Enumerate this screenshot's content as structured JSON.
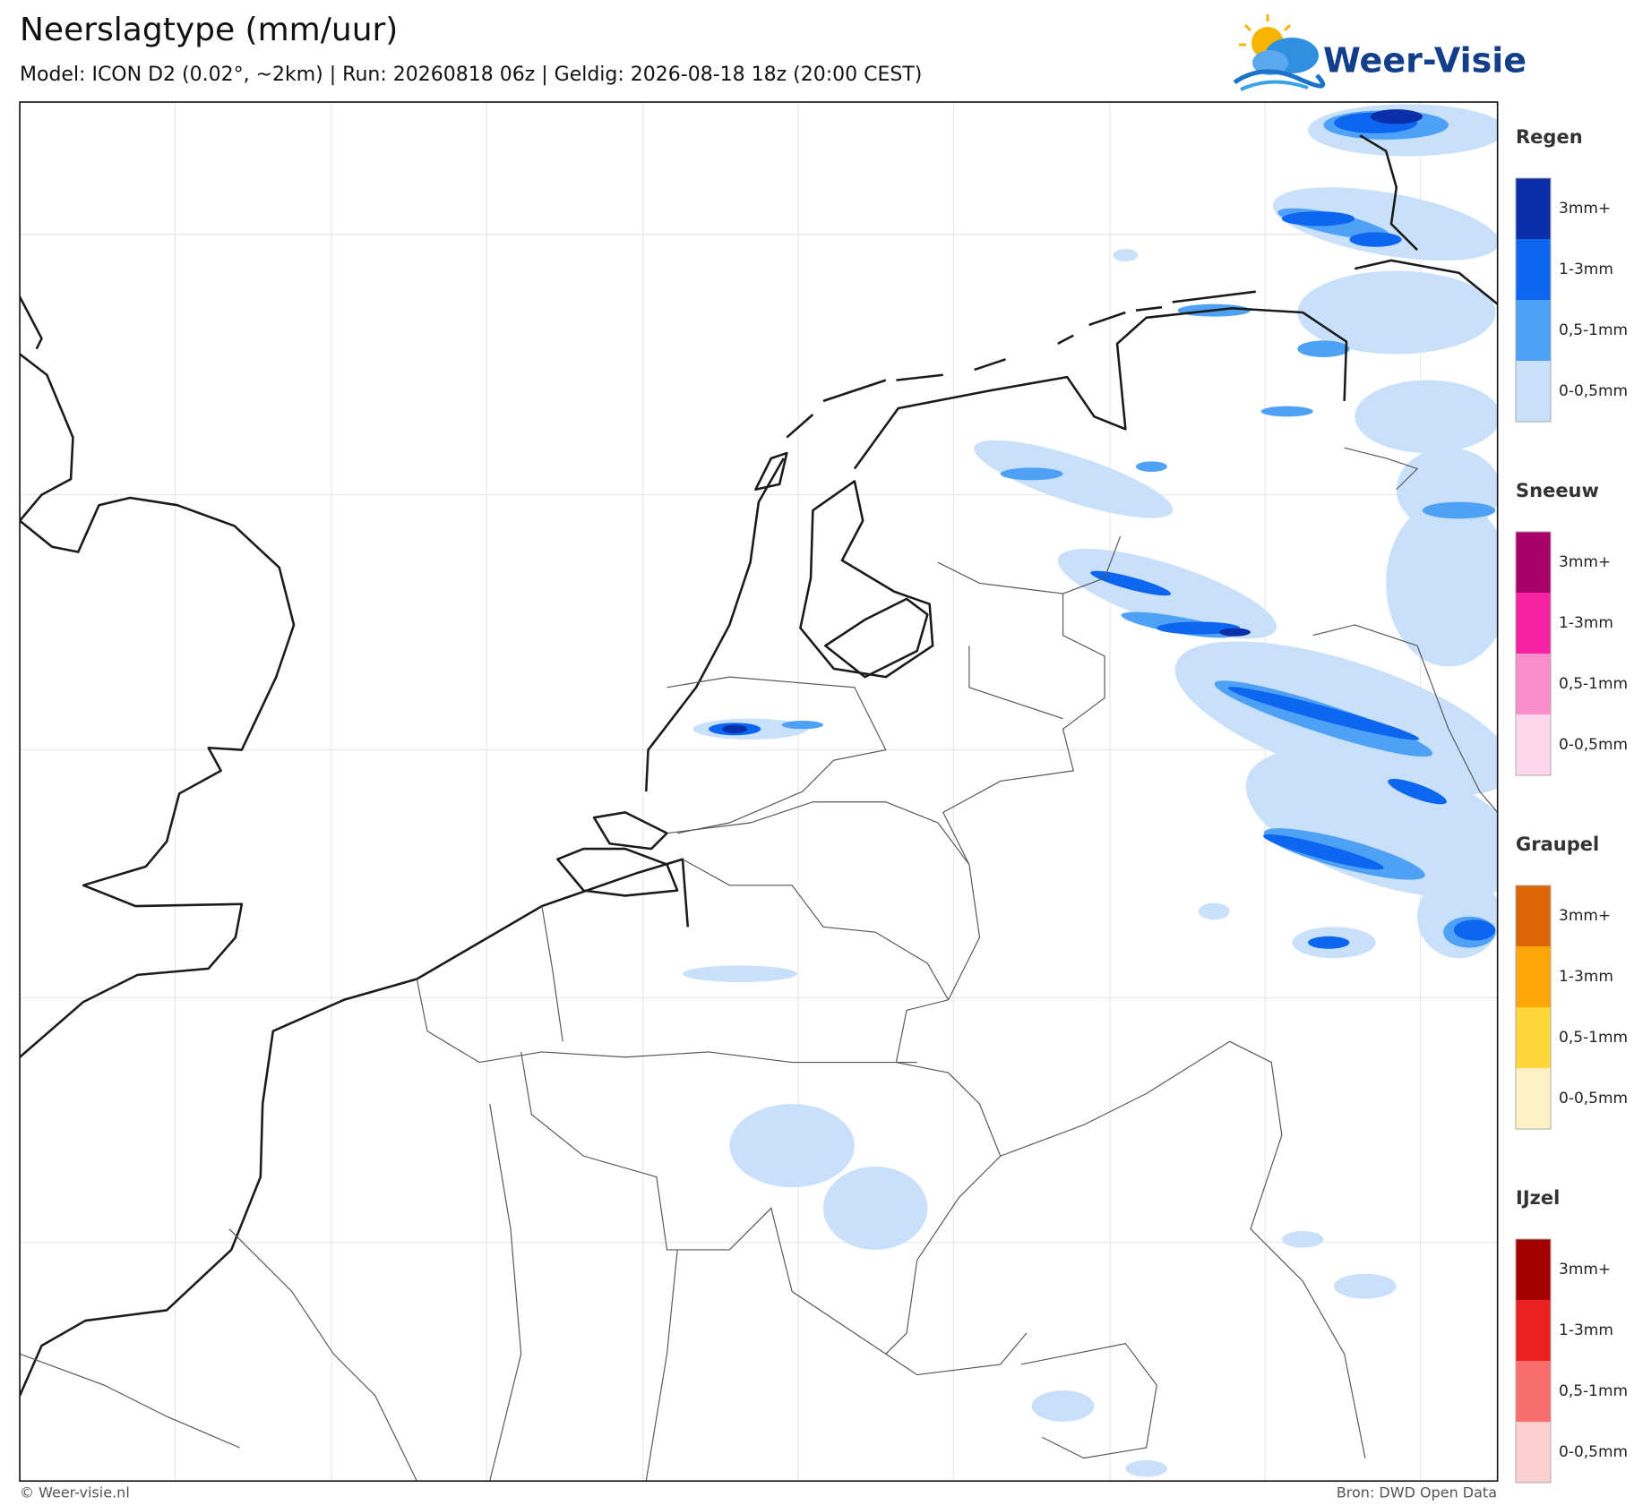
{
  "header": {
    "title": "Neerslagtype (mm/uur)",
    "subtitle": "Model: ICON D2 (0.02°, ~2km)  |  Run: 20260818 06z  |  Geldig: 2026-08-18 18z (20:00 CEST)"
  },
  "logo": {
    "text": "Weer-Visie"
  },
  "legend": {
    "groups": [
      {
        "title": "Regen",
        "items": [
          {
            "label": "3mm+",
            "color": "#0a2fa8"
          },
          {
            "label": "1-3mm",
            "color": "#0d66f0"
          },
          {
            "label": "0,5-1mm",
            "color": "#4fa1f5"
          },
          {
            "label": "0-0,5mm",
            "color": "#c9e0fb"
          }
        ]
      },
      {
        "title": "Sneeuw",
        "items": [
          {
            "label": "3mm+",
            "color": "#a8006a"
          },
          {
            "label": "1-3mm",
            "color": "#f723a3"
          },
          {
            "label": "0,5-1mm",
            "color": "#f98ccb"
          },
          {
            "label": "0-0,5mm",
            "color": "#fcd7ec"
          }
        ]
      },
      {
        "title": "Graupel",
        "items": [
          {
            "label": "3mm+",
            "color": "#dd6606"
          },
          {
            "label": "1-3mm",
            "color": "#fea608"
          },
          {
            "label": "0,5-1mm",
            "color": "#fed638"
          },
          {
            "label": "0-0,5mm",
            "color": "#fef2c4"
          }
        ]
      },
      {
        "title": "IJzel",
        "items": [
          {
            "label": "3mm+",
            "color": "#a50000"
          },
          {
            "label": "1-3mm",
            "color": "#ec2020"
          },
          {
            "label": "0,5-1mm",
            "color": "#fa6d6d"
          },
          {
            "label": "0-0,5mm",
            "color": "#fdd0d0"
          }
        ]
      }
    ]
  },
  "footer": {
    "left": "© Weer-visie.nl",
    "right": "Bron: DWD Open Data"
  }
}
